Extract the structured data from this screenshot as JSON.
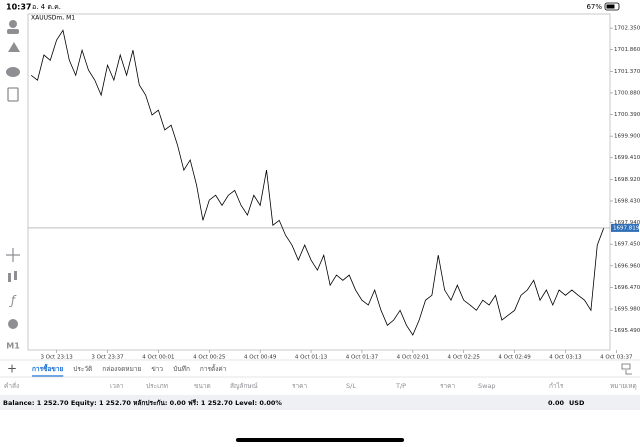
{
  "status_bar": {
    "time": "10:37",
    "date": "อ. 4 ต.ค.",
    "battery": "67%"
  },
  "toolbar": {
    "timeframe": "M1"
  },
  "chart_data": {
    "type": "line",
    "title": "XAUUSDm, M1",
    "color": "#000000",
    "values": [
      1701.28,
      1701.17,
      1701.74,
      1701.62,
      1702.08,
      1702.3,
      1701.62,
      1701.28,
      1701.85,
      1701.4,
      1701.17,
      1700.83,
      1701.51,
      1701.17,
      1701.74,
      1701.28,
      1701.85,
      1701.06,
      1700.83,
      1700.38,
      1700.49,
      1700.04,
      1700.15,
      1699.7,
      1699.13,
      1699.36,
      1698.79,
      1697.99,
      1698.45,
      1698.56,
      1698.33,
      1698.56,
      1698.67,
      1698.33,
      1698.11,
      1698.56,
      1698.33,
      1699.13,
      1697.88,
      1697.99,
      1697.65,
      1697.43,
      1697.09,
      1697.43,
      1697.09,
      1696.86,
      1697.2,
      1696.52,
      1696.75,
      1696.63,
      1696.75,
      1696.41,
      1696.18,
      1696.07,
      1696.41,
      1695.95,
      1695.61,
      1695.73,
      1695.95,
      1695.61,
      1695.39,
      1695.73,
      1696.18,
      1696.29,
      1697.2,
      1696.41,
      1696.18,
      1696.52,
      1696.18,
      1696.07,
      1695.95,
      1696.18,
      1696.07,
      1696.29,
      1695.73,
      1695.84,
      1695.95,
      1696.29,
      1696.41,
      1696.63,
      1696.18,
      1696.41,
      1696.07,
      1696.41,
      1696.29,
      1696.41,
      1696.29,
      1696.18,
      1695.95,
      1697.43,
      1697.81
    ],
    "xlim": [
      -0.5,
      91
    ],
    "xticks": [
      {
        "value": 4,
        "label": "3 Oct 23:13"
      },
      {
        "value": 12,
        "label": "3 Oct 23:37"
      },
      {
        "value": 20,
        "label": "4 Oct 00:01"
      },
      {
        "value": 28,
        "label": "4 Oct 00:25"
      },
      {
        "value": 36,
        "label": "4 Oct 00:49"
      },
      {
        "value": 44,
        "label": "4 Oct 01:13"
      },
      {
        "value": 52,
        "label": "4 Oct 01:37"
      },
      {
        "value": 60,
        "label": "4 Oct 02:01"
      },
      {
        "value": 68,
        "label": "4 Oct 02:25"
      },
      {
        "value": 76,
        "label": "4 Oct 02:49"
      },
      {
        "value": 84,
        "label": "4 Oct 03:13"
      },
      {
        "value": 92,
        "label": "4 Oct 03:37"
      }
    ],
    "ylim": [
      1695.05,
      1702.67
    ],
    "yticks": [
      {
        "value": 1702.35,
        "label": "1702.350"
      },
      {
        "value": 1701.86,
        "label": "1701.860"
      },
      {
        "value": 1701.37,
        "label": "1701.370"
      },
      {
        "value": 1700.88,
        "label": "1700.880"
      },
      {
        "value": 1700.39,
        "label": "1700.390"
      },
      {
        "value": 1699.9,
        "label": "1699.900"
      },
      {
        "value": 1699.41,
        "label": "1699.410"
      },
      {
        "value": 1698.92,
        "label": "1698.920"
      },
      {
        "value": 1698.43,
        "label": "1698.430"
      },
      {
        "value": 1697.94,
        "label": "1697.940"
      },
      {
        "value": 1697.45,
        "label": "1697.450"
      },
      {
        "value": 1696.96,
        "label": "1696.960"
      },
      {
        "value": 1696.47,
        "label": "1696.470"
      },
      {
        "value": 1695.98,
        "label": "1695.980"
      },
      {
        "value": 1695.49,
        "label": "1695.490"
      }
    ],
    "current_price": 1697.819
  },
  "tabs": [
    "การซื้อขาย",
    "ประวัติ",
    "กล่องจดหมาย",
    "ข่าว",
    "บันทึก",
    "การตั้งค่า"
  ],
  "active_tab": 0,
  "columns": [
    "คำสั่ง",
    "เวลา",
    "ประเภท",
    "ขนาด",
    "สัญลักษณ์",
    "ราคา",
    "S/L",
    "T/P",
    "ราคา",
    "Swap",
    "กำไร",
    "หมายเหตุ"
  ],
  "account": {
    "summary": "Balance: 1 252.70 Equity: 1 252.70 หลักประกัน: 0.00 ฟรี: 1 252.70 Level: 0.00%",
    "profit": "0.00",
    "currency": "USD"
  }
}
